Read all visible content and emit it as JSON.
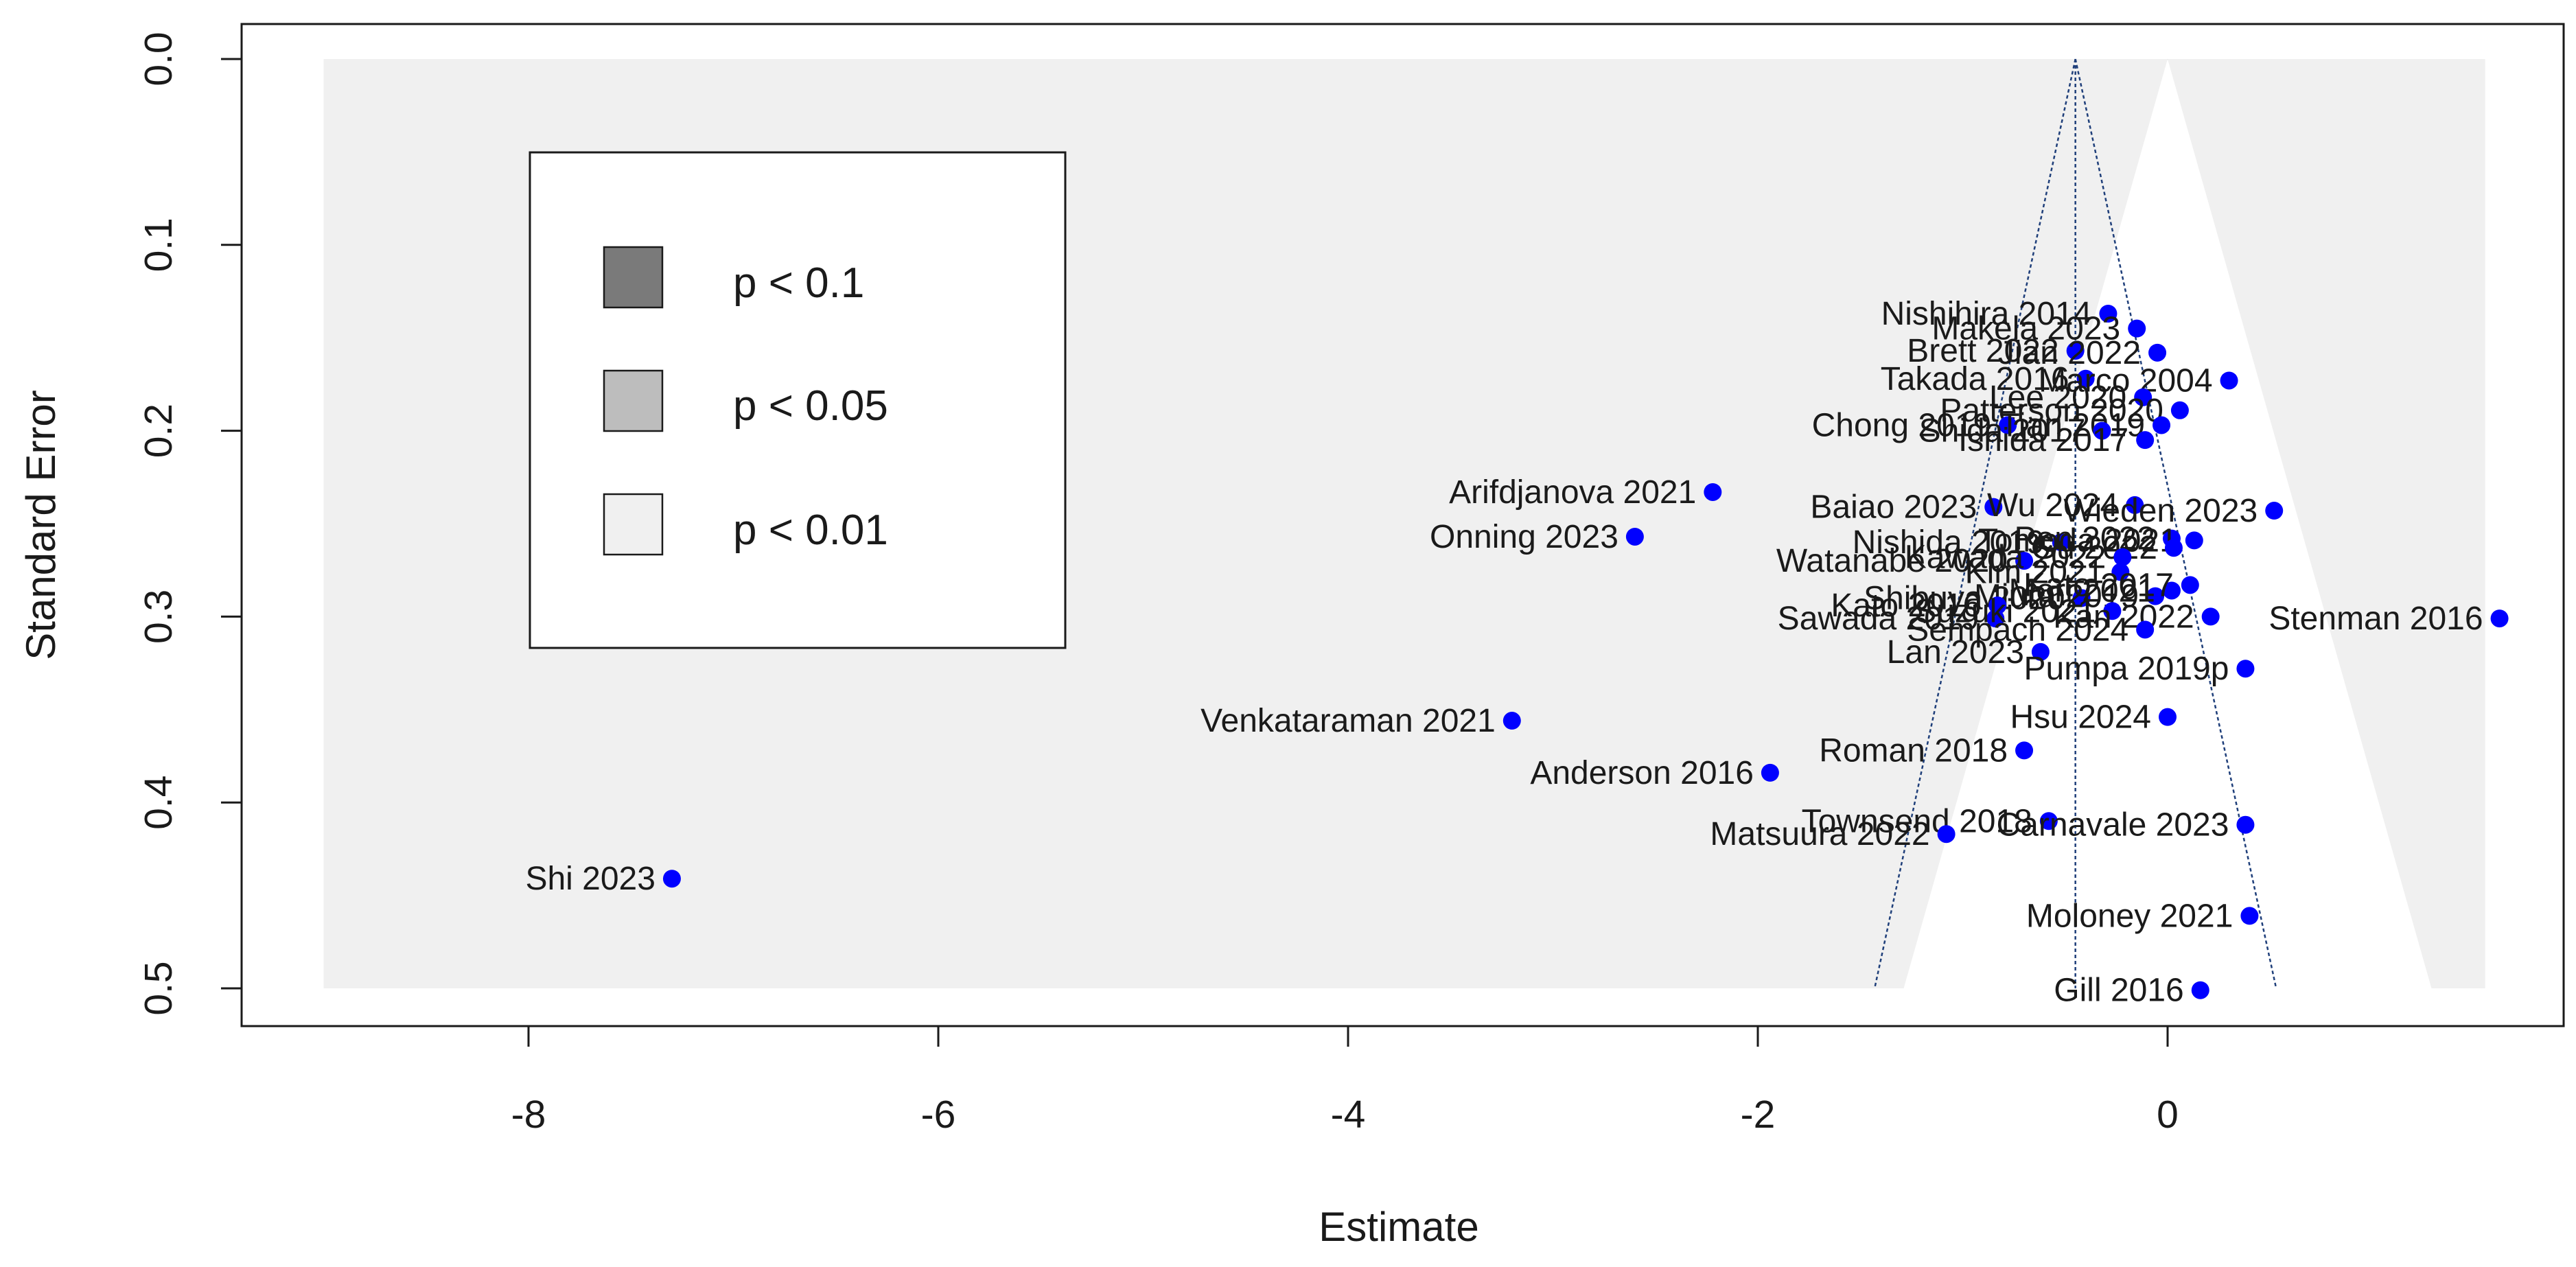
{
  "chart_data": {
    "type": "scatter",
    "subtype": "contour-enhanced funnel plot",
    "xlabel": "Estimate",
    "ylabel": "Standard Error",
    "xlim": [
      -9.0,
      1.55
    ],
    "ylim": [
      0.0,
      0.5
    ],
    "x_ticks": [
      "-8",
      "-6",
      "-4",
      "-2",
      "0"
    ],
    "x_tick_values": [
      -8,
      -6,
      -4,
      -2,
      0
    ],
    "y_ticks": [
      "0.0",
      "0.1",
      "0.2",
      "0.3",
      "0.4",
      "0.5"
    ],
    "y_tick_values": [
      0.0,
      0.1,
      0.2,
      0.3,
      0.4,
      0.5
    ],
    "reference_value": 0,
    "pooled_estimate": -0.45,
    "contours": [
      {
        "label": "p < 0.1",
        "z": 1.645,
        "color": "#7a7a7a"
      },
      {
        "label": "p < 0.05",
        "z": 1.96,
        "color": "#bdbdbd"
      },
      {
        "label": "p < 0.01",
        "z": 2.576,
        "color": "#ffffff"
      }
    ],
    "region_background": "#f0f0f0",
    "point_color": "#0000ff",
    "legend": [
      {
        "label": "p < 0.1",
        "color": "#7a7a7a"
      },
      {
        "label": "p < 0.05",
        "color": "#bdbdbd"
      },
      {
        "label": "p < 0.01",
        "color": "#f0f0f0"
      }
    ],
    "points": [
      {
        "label": "Nishihira 2014",
        "x": -0.29,
        "y": 0.137
      },
      {
        "label": "Makela 2023",
        "x": -0.15,
        "y": 0.145
      },
      {
        "label": "Brett 2022",
        "x": -0.45,
        "y": 0.157
      },
      {
        "label": "Jian 2022",
        "x": -0.05,
        "y": 0.158
      },
      {
        "label": "Takada 2016",
        "x": -0.4,
        "y": 0.172
      },
      {
        "label": "Marco 2004",
        "x": 0.3,
        "y": 0.173
      },
      {
        "label": "Lee 2020",
        "x": -0.12,
        "y": 0.182
      },
      {
        "label": "Patterson 2020",
        "x": 0.06,
        "y": 0.189
      },
      {
        "label": "Chong 2019",
        "x": -0.78,
        "y": 0.197
      },
      {
        "label": "Tian 2019",
        "x": -0.03,
        "y": 0.197
      },
      {
        "label": "Shida 2017",
        "x": -0.32,
        "y": 0.2
      },
      {
        "label": "Ishida 2017",
        "x": -0.11,
        "y": 0.205
      },
      {
        "label": "Arifdjanova 2021",
        "x": -2.22,
        "y": 0.233
      },
      {
        "label": "Baiao 2023",
        "x": -0.85,
        "y": 0.241
      },
      {
        "label": "Wu 2024",
        "x": -0.16,
        "y": 0.24
      },
      {
        "label": "Wieden 2023",
        "x": 0.52,
        "y": 0.243
      },
      {
        "label": "Onning 2023",
        "x": -2.6,
        "y": 0.257
      },
      {
        "label": "Nishida 2019",
        "x": -0.52,
        "y": 0.26
      },
      {
        "label": "Pen 2022",
        "x": 0.02,
        "y": 0.258
      },
      {
        "label": "Tomoda 2021",
        "x": 0.13,
        "y": 0.259
      },
      {
        "label": "Gu 2022",
        "x": 0.03,
        "y": 0.263
      },
      {
        "label": "Watanabe 2020",
        "x": -0.7,
        "y": 0.27
      },
      {
        "label": "Kawada 2022",
        "x": -0.22,
        "y": 0.268
      },
      {
        "label": "Kim 2021",
        "x": -0.23,
        "y": 0.276
      },
      {
        "label": "Shibuya 2020",
        "x": -0.42,
        "y": 0.29
      },
      {
        "label": "Miura 2019",
        "x": -0.06,
        "y": 0.289
      },
      {
        "label": "Mori 2021",
        "x": 0.02,
        "y": 0.286
      },
      {
        "label": "Kato 2017",
        "x": 0.11,
        "y": 0.283
      },
      {
        "label": "Kato 2016",
        "x": -0.83,
        "y": 0.294
      },
      {
        "label": "Sawada 2019",
        "x": -0.84,
        "y": 0.301
      },
      {
        "label": "Suzuki 2021",
        "x": -0.27,
        "y": 0.297
      },
      {
        "label": "Kan 2022",
        "x": 0.21,
        "y": 0.3
      },
      {
        "label": "Sempach 2024",
        "x": -0.11,
        "y": 0.307
      },
      {
        "label": "Stenman 2016",
        "x": 1.62,
        "y": 0.301
      },
      {
        "label": "Lan 2023",
        "x": -0.62,
        "y": 0.319
      },
      {
        "label": "Pumpa 2019p",
        "x": 0.38,
        "y": 0.328
      },
      {
        "label": "Venkataraman 2021",
        "x": -3.2,
        "y": 0.356
      },
      {
        "label": "Hsu 2024",
        "x": 0.0,
        "y": 0.354
      },
      {
        "label": "Roman 2018",
        "x": -0.7,
        "y": 0.372
      },
      {
        "label": "Anderson 2016",
        "x": -1.94,
        "y": 0.384
      },
      {
        "label": "Townsend 2018",
        "x": -0.58,
        "y": 0.41
      },
      {
        "label": "Carnavale 2023",
        "x": 0.38,
        "y": 0.412
      },
      {
        "label": "Matsuura 2022",
        "x": -1.08,
        "y": 0.417
      },
      {
        "label": "Shi 2023",
        "x": -7.3,
        "y": 0.441
      },
      {
        "label": "Moloney 2021",
        "x": 0.4,
        "y": 0.461
      },
      {
        "label": "Gill 2016",
        "x": 0.16,
        "y": 0.501
      }
    ]
  }
}
